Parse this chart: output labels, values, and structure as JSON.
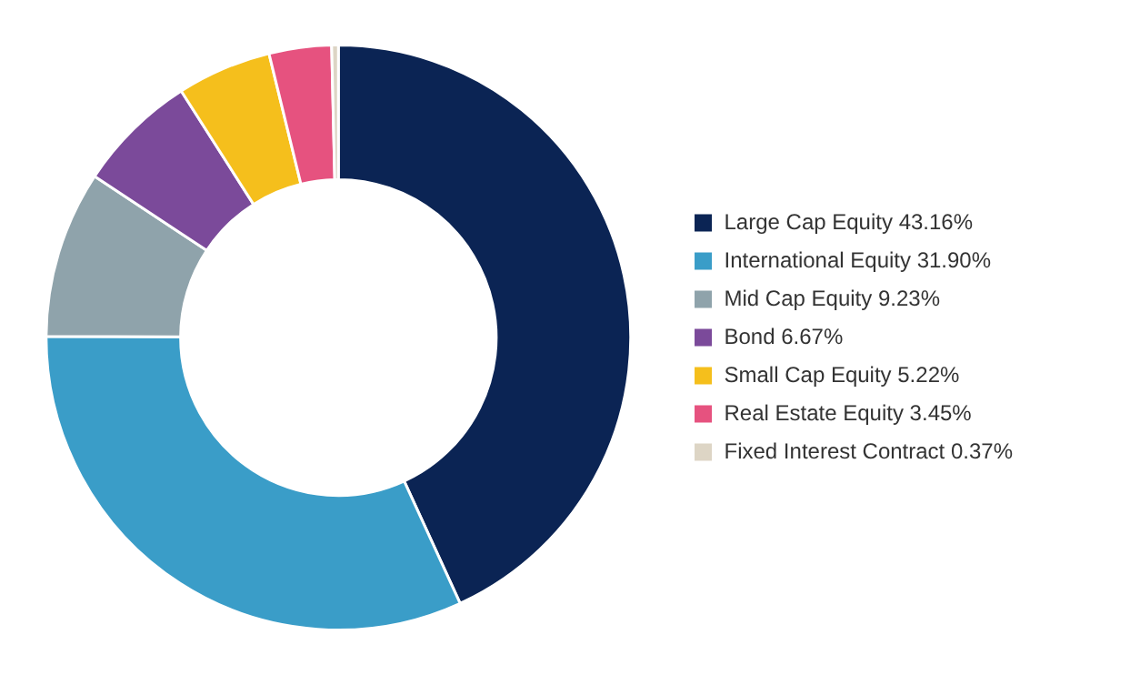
{
  "chart_data": {
    "type": "donut",
    "categories": [
      "Large Cap Equity 43.16%",
      "International Equity 31.90%",
      "Mid Cap Equity 9.23%",
      "Bond 6.67%",
      "Small Cap Equity 5.22%",
      "Real Estate Equity 3.45%",
      "Fixed Interest Contract 0.37%"
    ],
    "values": [
      43.16,
      31.9,
      9.23,
      6.67,
      5.22,
      3.45,
      0.37
    ],
    "colors": [
      "#0b2454",
      "#3a9dc8",
      "#8fa3ab",
      "#7b4a9a",
      "#f5bf1c",
      "#e6527f",
      "#ddd5c5"
    ],
    "legend": "right"
  }
}
